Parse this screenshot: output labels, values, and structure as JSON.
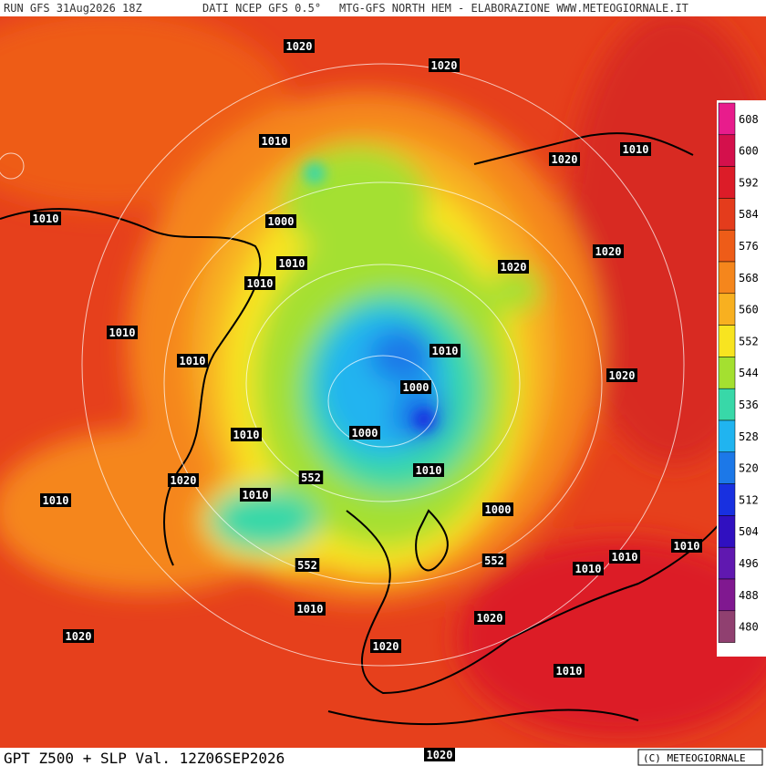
{
  "header": {
    "run": "RUN GFS 31Aug2026 18Z",
    "source": "DATI NCEP GFS 0.5°",
    "credit": "MTG-GFS NORTH HEM - ELABORAZIONE WWW.METEOGIORNALE.IT"
  },
  "footer": {
    "title": "GPT Z500 + SLP Val. 12Z06SEP2026",
    "copyright": "(C) METEOGIORNALE"
  },
  "legend": {
    "items": [
      {
        "label": "608",
        "color": "#e81c8c"
      },
      {
        "label": "600",
        "color": "#d4104c"
      },
      {
        "label": "592",
        "color": "#dc1c28"
      },
      {
        "label": "584",
        "color": "#e43c1c"
      },
      {
        "label": "576",
        "color": "#ee5c18"
      },
      {
        "label": "568",
        "color": "#f5861c"
      },
      {
        "label": "560",
        "color": "#f8b020"
      },
      {
        "label": "552",
        "color": "#f8e420"
      },
      {
        "label": "544",
        "color": "#a4e030"
      },
      {
        "label": "536",
        "color": "#38d8a8"
      },
      {
        "label": "528",
        "color": "#20b4f0"
      },
      {
        "label": "520",
        "color": "#1c78e8"
      },
      {
        "label": "512",
        "color": "#1830e0"
      },
      {
        "label": "504",
        "color": "#3010c0"
      },
      {
        "label": "496",
        "color": "#6018b0"
      },
      {
        "label": "488",
        "color": "#801890"
      },
      {
        "label": "480",
        "color": "#904070"
      }
    ]
  },
  "map": {
    "contour_labels": [
      "1020",
      "1020",
      "1010",
      "1020",
      "1010",
      "1010",
      "1000",
      "1010",
      "1020",
      "1020",
      "1010",
      "1010",
      "1010",
      "1010",
      "1020",
      "1000",
      "1010",
      "1000",
      "1010",
      "552",
      "1020",
      "1010",
      "1010",
      "1000",
      "552",
      "552",
      "1010",
      "1010",
      "1010",
      "1010",
      "1020",
      "1020",
      "1020",
      "1010",
      "1020"
    ]
  }
}
